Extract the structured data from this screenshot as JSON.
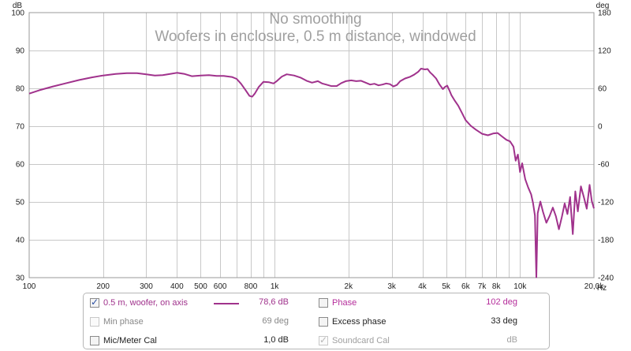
{
  "chart_data": {
    "type": "line",
    "title": "No smoothing",
    "subtitle": "Woofers in enclosure, 0.5 m distance, windowed",
    "x_scale": "log",
    "xlim": [
      100,
      20000
    ],
    "xunit": "Hz",
    "x_ticks": [
      {
        "v": 100,
        "label": "100"
      },
      {
        "v": 200,
        "label": "200"
      },
      {
        "v": 300,
        "label": "300"
      },
      {
        "v": 400,
        "label": "400"
      },
      {
        "v": 500,
        "label": "500"
      },
      {
        "v": 600,
        "label": "600"
      },
      {
        "v": 800,
        "label": "800"
      },
      {
        "v": 1000,
        "label": "1k"
      },
      {
        "v": 2000,
        "label": "2k"
      },
      {
        "v": 3000,
        "label": "3k"
      },
      {
        "v": 4000,
        "label": "4k"
      },
      {
        "v": 5000,
        "label": "5k"
      },
      {
        "v": 6000,
        "label": "6k"
      },
      {
        "v": 7000,
        "label": "7k"
      },
      {
        "v": 8000,
        "label": "8k"
      },
      {
        "v": 10000,
        "label": "10k"
      },
      {
        "v": 20000,
        "label": "20,0k"
      }
    ],
    "x_minor": [
      700,
      900,
      9000
    ],
    "y_left": {
      "unit": "dB",
      "min": 30,
      "max": 100,
      "ticks": [
        100,
        90,
        80,
        70,
        60,
        50,
        40,
        30
      ]
    },
    "y_right": {
      "unit": "deg",
      "min": -240,
      "max": 180,
      "ticks": [
        180,
        120,
        60,
        0,
        -60,
        -120,
        -180,
        -240
      ]
    },
    "grid": true,
    "series": [
      {
        "name": "0.5 m, woofer, on axis",
        "color": "#a0328c",
        "points": [
          [
            100,
            78.6
          ],
          [
            110,
            79.5
          ],
          [
            125,
            80.5
          ],
          [
            140,
            81.3
          ],
          [
            160,
            82.2
          ],
          [
            180,
            82.9
          ],
          [
            200,
            83.4
          ],
          [
            225,
            83.8
          ],
          [
            250,
            84.0
          ],
          [
            275,
            84.0
          ],
          [
            300,
            83.7
          ],
          [
            325,
            83.4
          ],
          [
            350,
            83.5
          ],
          [
            375,
            83.8
          ],
          [
            400,
            84.1
          ],
          [
            430,
            83.8
          ],
          [
            460,
            83.2
          ],
          [
            500,
            83.4
          ],
          [
            540,
            83.5
          ],
          [
            580,
            83.3
          ],
          [
            620,
            83.3
          ],
          [
            670,
            83.0
          ],
          [
            700,
            82.5
          ],
          [
            730,
            81.2
          ],
          [
            760,
            79.6
          ],
          [
            790,
            78.0
          ],
          [
            810,
            77.8
          ],
          [
            830,
            78.6
          ],
          [
            860,
            80.3
          ],
          [
            900,
            81.7
          ],
          [
            950,
            81.6
          ],
          [
            990,
            81.3
          ],
          [
            1020,
            81.9
          ],
          [
            1070,
            83.1
          ],
          [
            1120,
            83.7
          ],
          [
            1200,
            83.4
          ],
          [
            1280,
            82.8
          ],
          [
            1350,
            82.0
          ],
          [
            1420,
            81.5
          ],
          [
            1500,
            81.9
          ],
          [
            1560,
            81.3
          ],
          [
            1620,
            81.0
          ],
          [
            1700,
            80.6
          ],
          [
            1790,
            80.6
          ],
          [
            1870,
            81.4
          ],
          [
            1950,
            81.9
          ],
          [
            2050,
            82.1
          ],
          [
            2150,
            81.9
          ],
          [
            2250,
            82.0
          ],
          [
            2350,
            81.5
          ],
          [
            2450,
            81.0
          ],
          [
            2550,
            81.2
          ],
          [
            2650,
            80.8
          ],
          [
            2750,
            81.0
          ],
          [
            2850,
            81.3
          ],
          [
            2950,
            81.1
          ],
          [
            3050,
            80.5
          ],
          [
            3150,
            80.9
          ],
          [
            3250,
            81.9
          ],
          [
            3400,
            82.6
          ],
          [
            3550,
            83.0
          ],
          [
            3700,
            83.6
          ],
          [
            3850,
            84.4
          ],
          [
            3950,
            85.2
          ],
          [
            4100,
            85.0
          ],
          [
            4200,
            85.1
          ],
          [
            4300,
            84.2
          ],
          [
            4400,
            83.6
          ],
          [
            4550,
            82.6
          ],
          [
            4700,
            81.0
          ],
          [
            4850,
            79.8
          ],
          [
            4950,
            80.4
          ],
          [
            5050,
            80.7
          ],
          [
            5150,
            79.5
          ],
          [
            5250,
            78.2
          ],
          [
            5400,
            76.9
          ],
          [
            5600,
            75.4
          ],
          [
            5800,
            73.5
          ],
          [
            6000,
            71.6
          ],
          [
            6300,
            70.1
          ],
          [
            6600,
            69.1
          ],
          [
            7000,
            68.0
          ],
          [
            7400,
            67.6
          ],
          [
            7800,
            68.1
          ],
          [
            8100,
            68.2
          ],
          [
            8400,
            67.4
          ],
          [
            8800,
            66.4
          ],
          [
            9100,
            66.0
          ],
          [
            9400,
            64.6
          ],
          [
            9600,
            60.9
          ],
          [
            9800,
            62.5
          ],
          [
            10000,
            57.9
          ],
          [
            10200,
            60.2
          ],
          [
            10500,
            56.0
          ],
          [
            10800,
            53.8
          ],
          [
            11100,
            52.0
          ],
          [
            11300,
            49.7
          ],
          [
            11500,
            46.4
          ],
          [
            11650,
            30.1
          ],
          [
            11800,
            47.0
          ],
          [
            12100,
            50.1
          ],
          [
            12400,
            47.4
          ],
          [
            12800,
            44.5
          ],
          [
            13200,
            46.3
          ],
          [
            13600,
            48.5
          ],
          [
            14000,
            46.2
          ],
          [
            14400,
            42.8
          ],
          [
            14800,
            46.0
          ],
          [
            15200,
            49.6
          ],
          [
            15600,
            46.8
          ],
          [
            16000,
            51.3
          ],
          [
            16400,
            41.5
          ],
          [
            16800,
            52.8
          ],
          [
            17200,
            47.5
          ],
          [
            17700,
            54.1
          ],
          [
            18200,
            51.2
          ],
          [
            18700,
            48.2
          ],
          [
            19200,
            54.5
          ],
          [
            19600,
            50.2
          ],
          [
            20000,
            48.3
          ]
        ]
      }
    ]
  },
  "legend": {
    "rows": [
      {
        "label": "0.5 m, woofer, on axis",
        "value": "78,6 dB",
        "checked": true,
        "disabled": false,
        "color": "#a0328c",
        "swatch": true
      },
      {
        "label": "Phase",
        "value": "102 deg",
        "checked": false,
        "disabled": false,
        "color": "#b52d9b",
        "swatch": false
      },
      {
        "label": "Min phase",
        "value": "69 deg",
        "checked": false,
        "disabled": true,
        "color": "#888888",
        "swatch": false
      },
      {
        "label": "Excess phase",
        "value": "33 deg",
        "checked": false,
        "disabled": false,
        "color": "#222222",
        "swatch": false
      },
      {
        "label": "Mic/Meter Cal",
        "value": "1,0 dB",
        "checked": false,
        "disabled": false,
        "color": "#222222",
        "swatch": false
      },
      {
        "label": "Soundcard Cal",
        "value": "dB",
        "checked": true,
        "disabled": true,
        "color": "#a0a0a0",
        "swatch": false
      }
    ]
  }
}
